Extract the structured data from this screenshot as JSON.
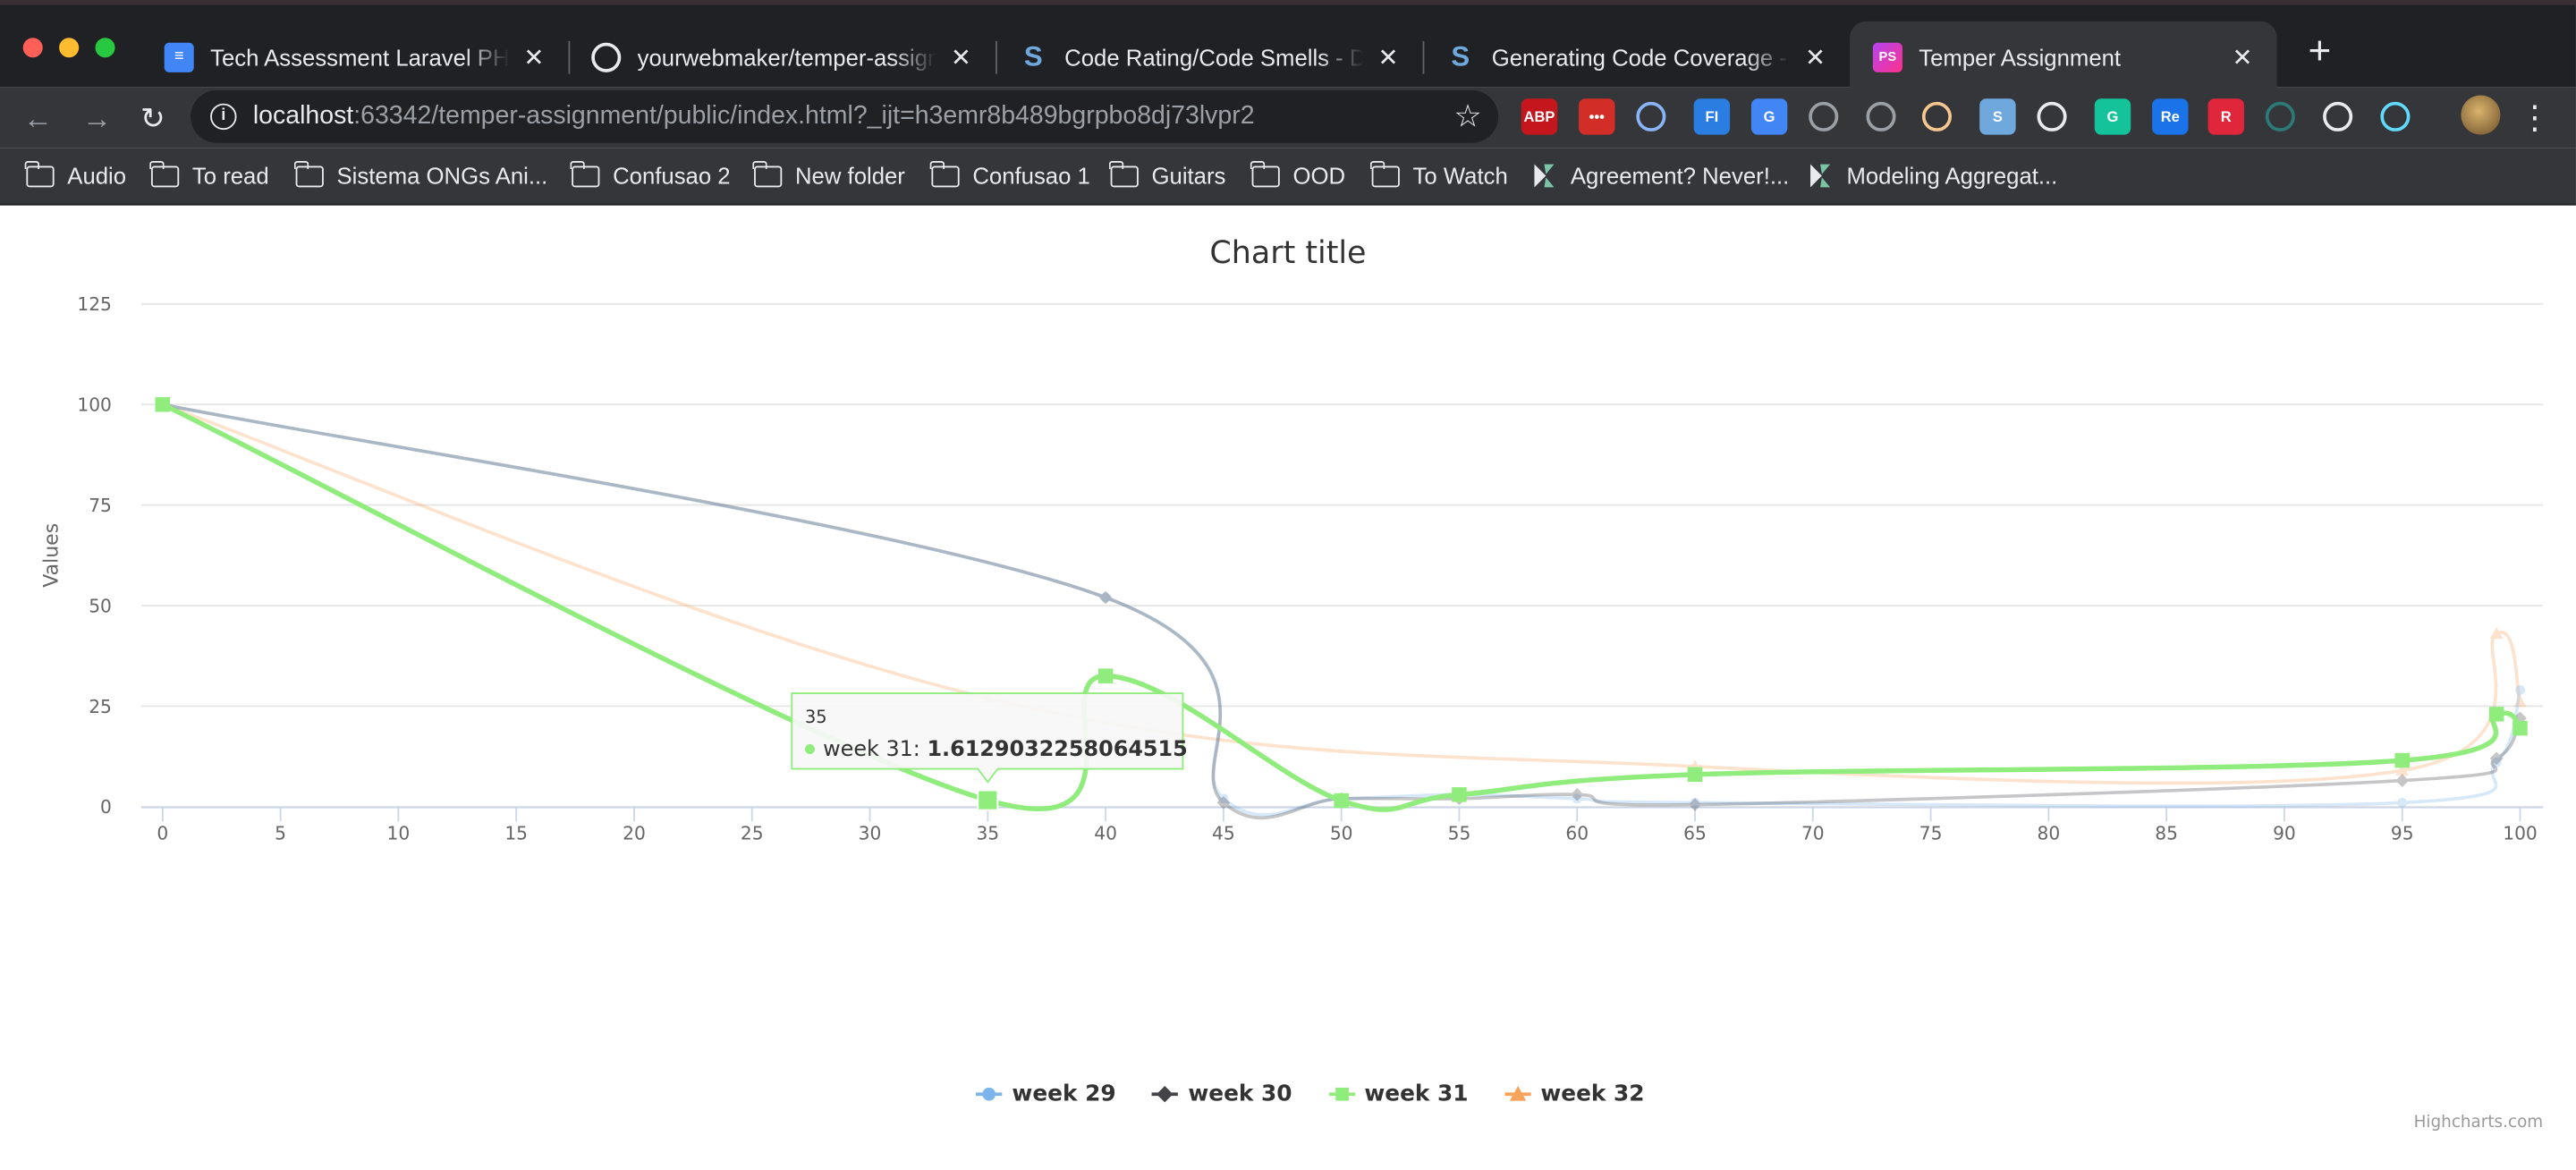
{
  "browser": {
    "tabs": [
      {
        "title": "Tech Assessment Laravel PHP - ",
        "icon": "google-docs-icon",
        "color": "#4285f4"
      },
      {
        "title": "yourwebmaker/temper-assignm",
        "icon": "github-icon",
        "color": "#e8eaed"
      },
      {
        "title": "Code Rating/Code Smells - Docu",
        "icon": "scrutinizer-icon",
        "color": "#6fa8dc"
      },
      {
        "title": "Generating Code Coverage - Do",
        "icon": "scrutinizer-icon",
        "color": "#6fa8dc"
      },
      {
        "title": "Temper Assignment",
        "icon": "phpstorm-icon",
        "color": "#b345f1",
        "active": true
      }
    ],
    "url_host": "localhost",
    "url_rest": ":63342/temper-assignment/public/index.html?_ijt=h3emr8b489bgrpbo8dj73lvpr2",
    "extensions": [
      {
        "name": "adblock-plus-icon",
        "label": "ABP",
        "color": "#c4161c"
      },
      {
        "name": "lastpass-icon",
        "label": "•••",
        "color": "#d32d27"
      },
      {
        "name": "toggl-icon",
        "label": "",
        "color": "#8ab4f8"
      },
      {
        "name": "fi-extension-icon",
        "label": "FI",
        "color": "#2a7de1"
      },
      {
        "name": "google-translate-icon",
        "label": "G",
        "color": "#4285f4"
      },
      {
        "name": "screen-capture-icon",
        "label": "",
        "color": "#9aa0a6"
      },
      {
        "name": "download-icon",
        "label": "",
        "color": "#9aa0a6"
      },
      {
        "name": "avatar-extension-icon",
        "label": "",
        "color": "#f6c78f"
      },
      {
        "name": "scrutinizer-extension-icon",
        "label": "S",
        "color": "#6fa8dc"
      },
      {
        "name": "flame-icon",
        "label": "",
        "color": "#e8eaed"
      },
      {
        "name": "grammarly-icon",
        "label": "G",
        "color": "#15c39a"
      },
      {
        "name": "readcube-icon",
        "label": "Re",
        "color": "#1a73e8"
      },
      {
        "name": "r-extension-icon",
        "label": "R",
        "color": "#e0263b"
      },
      {
        "name": "video-extension-icon",
        "label": "",
        "color": "#2b7a77"
      },
      {
        "name": "pocket-icon",
        "label": "",
        "color": "#e8eaed"
      },
      {
        "name": "react-devtools-icon",
        "label": "",
        "color": "#61dafb"
      }
    ],
    "bookmarks": [
      {
        "label": "Audio",
        "type": "folder"
      },
      {
        "label": "To read",
        "type": "folder"
      },
      {
        "label": "Sistema ONGs Ani...",
        "type": "folder"
      },
      {
        "label": "Confusao 2",
        "type": "folder"
      },
      {
        "label": "New folder",
        "type": "folder"
      },
      {
        "label": "Confusao 1",
        "type": "folder"
      },
      {
        "label": "Guitars",
        "type": "folder"
      },
      {
        "label": "OOD",
        "type": "folder"
      },
      {
        "label": "To Watch",
        "type": "folder"
      },
      {
        "label": "Agreement? Never!...",
        "type": "link"
      },
      {
        "label": "Modeling Aggregat...",
        "type": "link"
      }
    ]
  },
  "chart_data": {
    "type": "line",
    "title": "Chart title",
    "xlabel": "",
    "ylabel": "Values",
    "xlim": [
      0,
      100
    ],
    "ylim": [
      0,
      125
    ],
    "x_ticks": [
      0,
      5,
      10,
      15,
      20,
      25,
      30,
      35,
      40,
      45,
      50,
      55,
      60,
      65,
      70,
      75,
      80,
      85,
      90,
      95,
      100
    ],
    "y_ticks": [
      0,
      25,
      50,
      75,
      100,
      125
    ],
    "grid": true,
    "legend_position": "bottom-center",
    "series": [
      {
        "name": "week 29",
        "color": "#7cb5ec",
        "marker": "circle",
        "faded": true,
        "x": [
          0,
          40,
          45,
          50,
          55,
          60,
          65,
          95,
          99,
          100
        ],
        "y": [
          100,
          52,
          2,
          2,
          3,
          2,
          1,
          1,
          11,
          29
        ]
      },
      {
        "name": "week 30",
        "color": "#434348",
        "marker": "diamond",
        "faded": true,
        "x": [
          0,
          40,
          45,
          50,
          55,
          60,
          65,
          95,
          99,
          100
        ],
        "y": [
          100,
          52,
          1,
          2,
          2,
          3,
          0.5,
          6.5,
          12,
          22
        ]
      },
      {
        "name": "week 31",
        "color": "#90ed7d",
        "marker": "square",
        "faded": false,
        "x": [
          0,
          35,
          40,
          50,
          55,
          65,
          95,
          99,
          100
        ],
        "y": [
          100,
          1.6129032258064515,
          32.5,
          1.5,
          3,
          8,
          11.5,
          23,
          19.5
        ]
      },
      {
        "name": "week 32",
        "color": "#f7a35c",
        "marker": "triangle",
        "faded": true,
        "x": [
          0,
          35,
          65,
          95,
          99,
          100
        ],
        "y": [
          100,
          27,
          10,
          9,
          43,
          26
        ]
      }
    ],
    "tooltip": {
      "header": "35",
      "series": "week 31",
      "value": "1.6129032258064515"
    },
    "credits": "Highcharts.com"
  }
}
